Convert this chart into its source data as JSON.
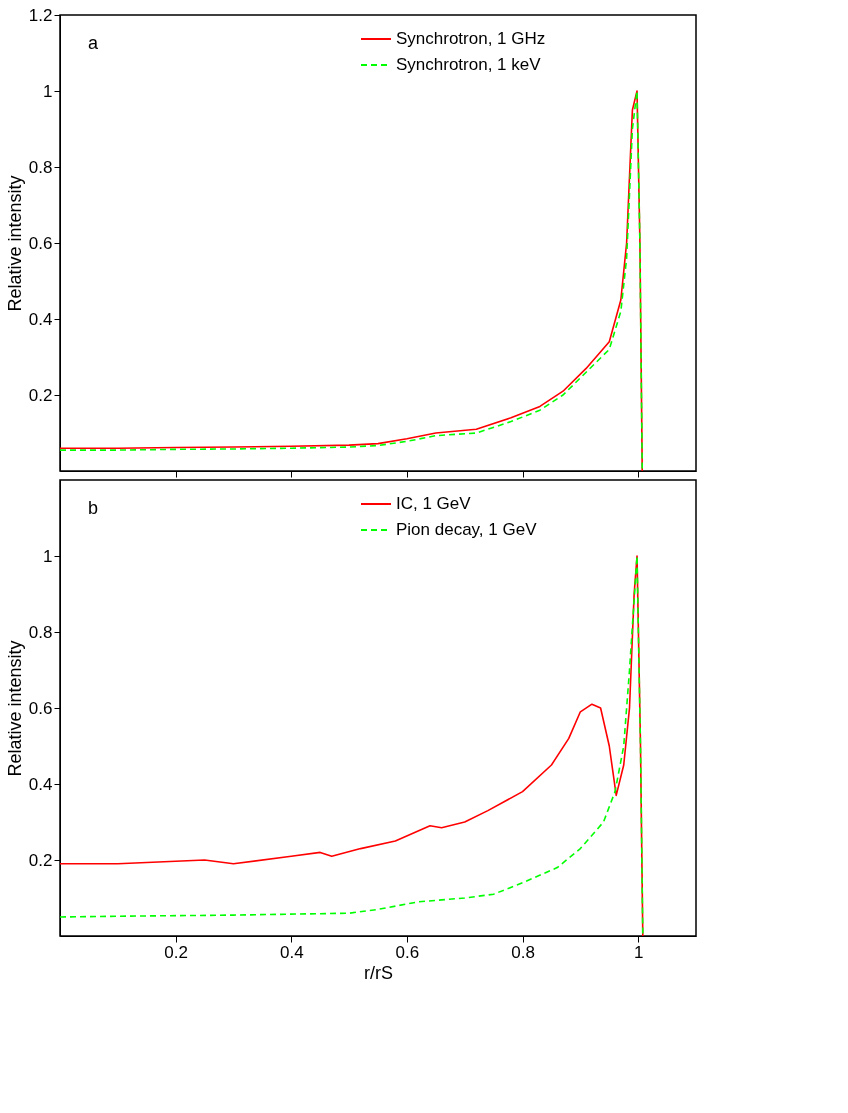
{
  "chart_data": [
    {
      "type": "line",
      "xlim": [
        0,
        1.1
      ],
      "xticks": [
        0.2,
        0.4,
        0.6,
        0.8,
        1
      ],
      "ylim": [
        0,
        1.2
      ],
      "yticks": [
        0.2,
        0.4,
        0.6,
        0.8,
        1,
        1.2
      ],
      "ylabel": "Relative intensity",
      "tick_labels": "y",
      "grid": false,
      "legend": "top right",
      "annotations": [
        "a"
      ],
      "series": [
        {
          "name": "Synchrotron, 1 GHz",
          "color": "#ff0000",
          "line_style": "solid",
          "x": [
            0,
            0.1,
            0.2,
            0.3,
            0.4,
            0.5,
            0.55,
            0.6,
            0.65,
            0.72,
            0.78,
            0.83,
            0.87,
            0.91,
            0.95,
            0.97,
            0.98,
            0.99,
            0.998,
            1.003,
            1.007
          ],
          "values": [
            0.06,
            0.06,
            0.062,
            0.063,
            0.065,
            0.068,
            0.072,
            0.085,
            0.1,
            0.11,
            0.14,
            0.17,
            0.21,
            0.27,
            0.34,
            0.45,
            0.6,
            0.95,
            1.0,
            0.6,
            0.0
          ]
        },
        {
          "name": "Synchrotron, 1 keV",
          "color": "#00ff00",
          "line_style": "dashed",
          "x": [
            0,
            0.1,
            0.2,
            0.3,
            0.4,
            0.5,
            0.55,
            0.6,
            0.65,
            0.72,
            0.78,
            0.83,
            0.87,
            0.91,
            0.95,
            0.97,
            0.98,
            0.99,
            0.998,
            1.003,
            1.007
          ],
          "values": [
            0.055,
            0.055,
            0.057,
            0.058,
            0.06,
            0.063,
            0.067,
            0.078,
            0.093,
            0.1,
            0.13,
            0.16,
            0.2,
            0.26,
            0.32,
            0.42,
            0.56,
            0.9,
            1.0,
            0.6,
            0.0
          ]
        }
      ]
    },
    {
      "type": "line",
      "xlim": [
        0,
        1.1
      ],
      "xticks": [
        0.2,
        0.4,
        0.6,
        0.8,
        1
      ],
      "ylim": [
        0,
        1.2
      ],
      "yticks": [
        0.2,
        0.4,
        0.6,
        0.8,
        1
      ],
      "xlabel": "r/rS",
      "ylabel": "Relative intensity",
      "grid": false,
      "legend": "top right",
      "annotations": [
        "b"
      ],
      "series": [
        {
          "name": "IC, 1 GeV",
          "color": "#ff0000",
          "line_style": "solid",
          "x": [
            0,
            0.1,
            0.25,
            0.3,
            0.4,
            0.45,
            0.47,
            0.52,
            0.58,
            0.64,
            0.66,
            0.7,
            0.74,
            0.8,
            0.85,
            0.88,
            0.9,
            0.92,
            0.935,
            0.95,
            0.962,
            0.975,
            0.985,
            0.993,
            0.998,
            1.004,
            1.008
          ],
          "values": [
            0.19,
            0.19,
            0.2,
            0.19,
            0.21,
            0.22,
            0.21,
            0.23,
            0.25,
            0.29,
            0.285,
            0.3,
            0.33,
            0.38,
            0.45,
            0.52,
            0.59,
            0.61,
            0.6,
            0.5,
            0.37,
            0.45,
            0.6,
            0.9,
            1.0,
            0.5,
            0.0
          ]
        },
        {
          "name": "Pion decay, 1 GeV",
          "color": "#00ff00",
          "line_style": "dashed",
          "x": [
            0,
            0.1,
            0.3,
            0.5,
            0.55,
            0.62,
            0.7,
            0.75,
            0.8,
            0.86,
            0.9,
            0.94,
            0.96,
            0.975,
            0.985,
            0.998,
            1.004,
            1.008
          ],
          "values": [
            0.05,
            0.052,
            0.055,
            0.06,
            0.07,
            0.09,
            0.1,
            0.11,
            0.14,
            0.18,
            0.23,
            0.3,
            0.38,
            0.5,
            0.7,
            1.0,
            0.5,
            0.0
          ]
        }
      ]
    }
  ]
}
